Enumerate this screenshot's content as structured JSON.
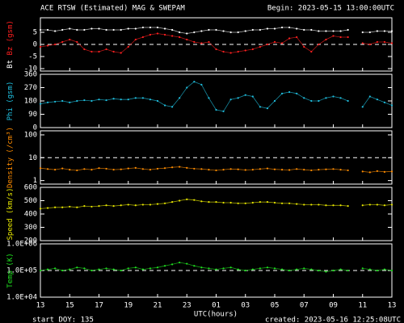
{
  "page": {
    "title": "ACE RTSW (Estimated) MAG & SWEPAM",
    "begin": "Begin: 2023-05-15 13:00:00UTC",
    "x_label": "UTC(hours)",
    "start": "start DOY: 135",
    "created": "created: 2023-05-16 12:25:08UTC"
  },
  "chart_data": [
    {
      "type": "line",
      "y_label": "(gsm)",
      "ylim": [
        -11,
        11
      ],
      "yticks": [
        -10,
        -5,
        0,
        5
      ],
      "reference": 0,
      "xlim": [
        0,
        24
      ],
      "x": [
        0,
        0.5,
        1,
        1.5,
        2,
        2.5,
        3,
        3.5,
        4,
        4.5,
        5,
        5.5,
        6,
        6.5,
        7,
        7.5,
        8,
        8.5,
        9,
        9.5,
        10,
        10.5,
        11,
        11.5,
        12,
        12.5,
        13,
        13.5,
        14,
        14.5,
        15,
        15.5,
        16,
        16.5,
        17,
        17.5,
        18,
        18.5,
        19,
        19.5,
        20,
        20.5,
        21,
        21.5,
        22,
        22.5,
        23,
        23.5,
        24
      ],
      "series": [
        {
          "name": "Bt",
          "color": "#ffffff",
          "values": [
            6,
            6,
            5.5,
            6,
            6.5,
            6,
            6,
            6.5,
            6.5,
            6,
            6,
            6,
            6.5,
            6.5,
            7,
            7,
            7,
            6.5,
            6,
            5,
            4.5,
            5,
            5.5,
            6,
            6,
            5.5,
            5,
            5,
            5.5,
            6,
            6,
            6.5,
            6.5,
            7,
            7,
            6.5,
            6,
            6,
            5.5,
            5.5,
            5.5,
            5.5,
            6,
            null,
            5,
            5,
            5.5,
            5.5,
            5.5
          ]
        },
        {
          "name": "Bz",
          "color": "#ff2020",
          "values": [
            -1,
            -0.5,
            0,
            1,
            2,
            1,
            -2,
            -3,
            -3,
            -2,
            -3,
            -3.5,
            -1,
            2,
            3,
            4,
            4.5,
            4,
            3.5,
            3,
            2,
            1,
            0.5,
            1,
            -2,
            -3,
            -3.5,
            -3,
            -2.5,
            -2,
            -1,
            0,
            1,
            0.5,
            2.5,
            3,
            -1,
            -3,
            0,
            2,
            3.5,
            3,
            3,
            null,
            0.5,
            0,
            1,
            1,
            0.5
          ]
        }
      ]
    },
    {
      "type": "line",
      "y_label": "(gsm)",
      "ylim": [
        0,
        360
      ],
      "yticks": [
        0,
        90,
        180,
        270,
        360
      ],
      "xlim": [
        0,
        24
      ],
      "x": [
        0,
        0.5,
        1,
        1.5,
        2,
        2.5,
        3,
        3.5,
        4,
        4.5,
        5,
        5.5,
        6,
        6.5,
        7,
        7.5,
        8,
        8.5,
        9,
        9.5,
        10,
        10.5,
        11,
        11.5,
        12,
        12.5,
        13,
        13.5,
        14,
        14.5,
        15,
        15.5,
        16,
        16.5,
        17,
        17.5,
        18,
        18.5,
        19,
        19.5,
        20,
        20.5,
        21,
        21.5,
        22,
        22.5,
        23,
        23.5,
        24
      ],
      "series": [
        {
          "name": "Phi",
          "color": "#20c0e0",
          "values": [
            160,
            170,
            175,
            180,
            170,
            180,
            185,
            180,
            190,
            185,
            195,
            190,
            190,
            200,
            200,
            190,
            180,
            150,
            140,
            200,
            270,
            310,
            290,
            200,
            120,
            110,
            190,
            200,
            220,
            210,
            140,
            130,
            180,
            230,
            240,
            230,
            200,
            180,
            180,
            200,
            210,
            200,
            180,
            null,
            140,
            210,
            190,
            170,
            150
          ]
        }
      ]
    },
    {
      "type": "line",
      "y_label": "(/cm³)",
      "log": true,
      "ylim": [
        0.7,
        150
      ],
      "yticks": [
        1,
        10,
        100
      ],
      "reference": 10,
      "xlim": [
        0,
        24
      ],
      "x": [
        0,
        0.5,
        1,
        1.5,
        2,
        2.5,
        3,
        3.5,
        4,
        4.5,
        5,
        5.5,
        6,
        6.5,
        7,
        7.5,
        8,
        8.5,
        9,
        9.5,
        10,
        10.5,
        11,
        11.5,
        12,
        12.5,
        13,
        13.5,
        14,
        14.5,
        15,
        15.5,
        16,
        16.5,
        17,
        17.5,
        18,
        18.5,
        19,
        19.5,
        20,
        20.5,
        21,
        21.5,
        22,
        22.5,
        23,
        23.5,
        24
      ],
      "series": [
        {
          "name": "Density",
          "color": "#ff8c00",
          "values": [
            3.5,
            3.2,
            3,
            3.4,
            3,
            2.8,
            3.2,
            3,
            3.5,
            3.3,
            3,
            3.1,
            3.4,
            3.6,
            3.2,
            3,
            3.3,
            3.5,
            3.8,
            4,
            3.6,
            3.3,
            3.2,
            3,
            2.8,
            3,
            3.2,
            3.1,
            2.9,
            3,
            3.2,
            3.4,
            3.1,
            3,
            2.9,
            3.2,
            3,
            2.8,
            3,
            3.1,
            3.2,
            3,
            2.8,
            null,
            2.5,
            2.3,
            2.6,
            2.4,
            2.5
          ]
        }
      ]
    },
    {
      "type": "line",
      "y_label": "(km/s)",
      "ylim": [
        200,
        600
      ],
      "yticks": [
        200,
        300,
        400,
        500,
        600
      ],
      "xlim": [
        0,
        24
      ],
      "x": [
        0,
        0.5,
        1,
        1.5,
        2,
        2.5,
        3,
        3.5,
        4,
        4.5,
        5,
        5.5,
        6,
        6.5,
        7,
        7.5,
        8,
        8.5,
        9,
        9.5,
        10,
        10.5,
        11,
        11.5,
        12,
        12.5,
        13,
        13.5,
        14,
        14.5,
        15,
        15.5,
        16,
        16.5,
        17,
        17.5,
        18,
        18.5,
        19,
        19.5,
        20,
        20.5,
        21,
        21.5,
        22,
        22.5,
        23,
        23.5,
        24
      ],
      "series": [
        {
          "name": "Speed",
          "color": "#e8e800",
          "values": [
            440,
            445,
            450,
            450,
            455,
            450,
            460,
            455,
            460,
            465,
            460,
            465,
            470,
            465,
            470,
            470,
            475,
            480,
            490,
            500,
            510,
            505,
            495,
            490,
            490,
            485,
            485,
            480,
            480,
            485,
            490,
            490,
            485,
            480,
            480,
            475,
            470,
            470,
            470,
            465,
            465,
            465,
            460,
            null,
            465,
            470,
            470,
            465,
            470
          ]
        }
      ]
    },
    {
      "type": "line",
      "y_label": "(K)",
      "log": true,
      "ylim": [
        10000,
        1000000
      ],
      "yticks": [
        {
          "value": 10000,
          "label": "1.0E+04"
        },
        {
          "value": 100000,
          "label": "1.0E+05"
        },
        {
          "value": 1000000,
          "label": "1.0E+06"
        }
      ],
      "reference": 100000,
      "xlim": [
        0,
        24
      ],
      "xticks": [
        {
          "value": 0,
          "label": "13"
        },
        {
          "value": 2,
          "label": "15"
        },
        {
          "value": 4,
          "label": "17"
        },
        {
          "value": 6,
          "label": "19"
        },
        {
          "value": 8,
          "label": "21"
        },
        {
          "value": 10,
          "label": "23"
        },
        {
          "value": 12,
          "label": "01"
        },
        {
          "value": 14,
          "label": "03"
        },
        {
          "value": 16,
          "label": "05"
        },
        {
          "value": 18,
          "label": "07"
        },
        {
          "value": 20,
          "label": "09"
        },
        {
          "value": 22,
          "label": "11"
        },
        {
          "value": 24,
          "label": "13"
        }
      ],
      "x": [
        0,
        0.5,
        1,
        1.5,
        2,
        2.5,
        3,
        3.5,
        4,
        4.5,
        5,
        5.5,
        6,
        6.5,
        7,
        7.5,
        8,
        8.5,
        9,
        9.5,
        10,
        10.5,
        11,
        11.5,
        12,
        12.5,
        13,
        13.5,
        14,
        14.5,
        15,
        15.5,
        16,
        16.5,
        17,
        17.5,
        18,
        18.5,
        19,
        19.5,
        20,
        20.5,
        21,
        21.5,
        22,
        22.5,
        23,
        23.5,
        24
      ],
      "series": [
        {
          "name": "Temp",
          "color": "#20e020",
          "values": [
            100000,
            110000,
            120000,
            100000,
            110000,
            130000,
            120000,
            100000,
            110000,
            120000,
            110000,
            100000,
            120000,
            130000,
            110000,
            120000,
            130000,
            150000,
            170000,
            200000,
            180000,
            150000,
            130000,
            120000,
            110000,
            120000,
            130000,
            110000,
            100000,
            110000,
            120000,
            130000,
            120000,
            110000,
            100000,
            110000,
            120000,
            110000,
            100000,
            90000,
            100000,
            110000,
            100000,
            null,
            120000,
            110000,
            100000,
            110000,
            100000
          ]
        }
      ]
    }
  ]
}
